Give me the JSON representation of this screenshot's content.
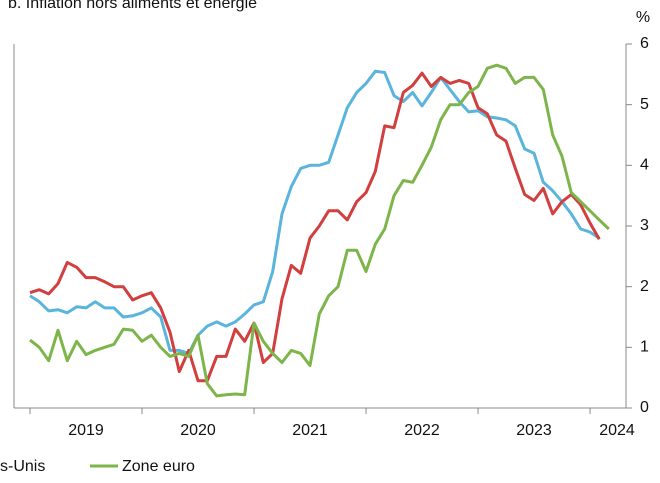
{
  "chart_data": {
    "type": "line",
    "title": "b. Inflation hors aliments et énergie",
    "y_unit": "%",
    "x": [
      2019,
      2019.083,
      2019.167,
      2019.25,
      2019.333,
      2019.417,
      2019.5,
      2019.583,
      2019.667,
      2019.75,
      2019.833,
      2019.917,
      2020,
      2020.083,
      2020.167,
      2020.25,
      2020.333,
      2020.417,
      2020.5,
      2020.583,
      2020.667,
      2020.75,
      2020.833,
      2020.917,
      2021,
      2021.083,
      2021.167,
      2021.25,
      2021.333,
      2021.417,
      2021.5,
      2021.583,
      2021.667,
      2021.75,
      2021.833,
      2021.917,
      2022,
      2022.083,
      2022.167,
      2022.25,
      2022.333,
      2022.417,
      2022.5,
      2022.583,
      2022.667,
      2022.75,
      2022.833,
      2022.917,
      2023,
      2023.083,
      2023.167,
      2023.25,
      2023.333,
      2023.417,
      2023.5,
      2023.583,
      2023.667,
      2023.75,
      2023.833,
      2023.917,
      2024,
      2024.083,
      2024.167
    ],
    "series": [
      {
        "name": "s-Unis",
        "color": "#5ab4dc",
        "values": [
          1.85,
          1.75,
          1.6,
          1.62,
          1.57,
          1.67,
          1.65,
          1.75,
          1.65,
          1.65,
          1.5,
          1.52,
          1.57,
          1.65,
          1.5,
          0.95,
          0.95,
          0.9,
          1.2,
          1.35,
          1.42,
          1.35,
          1.42,
          1.55,
          1.7,
          1.75,
          2.25,
          3.2,
          3.65,
          3.95,
          4.0,
          4.0,
          4.05,
          4.5,
          4.95,
          5.2,
          5.35,
          5.55,
          5.53,
          5.15,
          5.05,
          5.2,
          4.98,
          5.2,
          5.45,
          5.25,
          5.05,
          4.88,
          4.9,
          4.8,
          4.78,
          4.75,
          4.65,
          4.27,
          4.2,
          3.72,
          3.58,
          3.4,
          3.2,
          2.95,
          2.9,
          2.8,
          null
        ]
      },
      {
        "color": "#d13f3f",
        "values": [
          1.9,
          1.95,
          1.88,
          2.05,
          2.4,
          2.32,
          2.15,
          2.15,
          2.08,
          2.0,
          2.0,
          1.78,
          1.85,
          1.9,
          1.65,
          1.25,
          0.6,
          0.95,
          0.45,
          0.45,
          0.85,
          0.85,
          1.3,
          1.1,
          1.4,
          0.75,
          0.9,
          1.8,
          2.35,
          2.22,
          2.8,
          3.0,
          3.25,
          3.25,
          3.1,
          3.4,
          3.55,
          3.9,
          4.65,
          4.62,
          5.2,
          5.32,
          5.52,
          5.3,
          5.45,
          5.35,
          5.4,
          5.35,
          4.95,
          4.85,
          4.5,
          4.4,
          3.95,
          3.52,
          3.42,
          3.62,
          3.2,
          3.4,
          3.52,
          3.35,
          3.05,
          2.78,
          null
        ]
      },
      {
        "name": "Zone euro",
        "color": "#7db54a",
        "values": [
          1.12,
          1.0,
          0.78,
          1.28,
          0.78,
          1.1,
          0.88,
          0.95,
          1.0,
          1.05,
          1.3,
          1.28,
          1.1,
          1.2,
          1.0,
          0.85,
          0.9,
          0.85,
          1.2,
          0.4,
          0.2,
          0.22,
          0.23,
          0.22,
          1.4,
          1.1,
          0.9,
          0.75,
          0.95,
          0.9,
          0.7,
          1.55,
          1.85,
          2.0,
          2.6,
          2.6,
          2.25,
          2.7,
          2.95,
          3.5,
          3.75,
          3.72,
          4.0,
          4.3,
          4.75,
          5.0,
          5.0,
          5.2,
          5.3,
          5.6,
          5.65,
          5.6,
          5.35,
          5.45,
          5.45,
          5.25,
          4.5,
          4.15,
          3.55,
          3.4,
          3.25,
          3.1,
          2.95
        ]
      }
    ],
    "xlim": [
      2018.857,
      2024.321
    ],
    "xticks": [
      2019,
      2020,
      2021,
      2022,
      2023,
      2024
    ],
    "ylim": [
      0,
      6
    ],
    "yticks": [
      0,
      1,
      2,
      3,
      4,
      5,
      6
    ],
    "grid": false
  }
}
